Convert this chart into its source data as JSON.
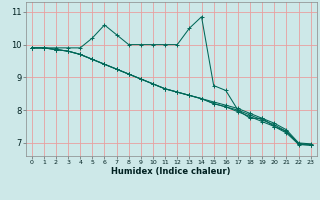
{
  "title": "",
  "xlabel": "Humidex (Indice chaleur)",
  "ylabel": "",
  "background_color": "#cde8e8",
  "grid_color_v": "#e8a0a0",
  "grid_color_h": "#e8a0a0",
  "line_color": "#006858",
  "x_ticks": [
    0,
    1,
    2,
    3,
    4,
    5,
    6,
    7,
    8,
    9,
    10,
    11,
    12,
    13,
    14,
    15,
    16,
    17,
    18,
    19,
    20,
    21,
    22,
    23
  ],
  "y_ticks": [
    7,
    8,
    9,
    10,
    11
  ],
  "ylim": [
    6.6,
    11.3
  ],
  "xlim": [
    -0.5,
    23.5
  ],
  "series": [
    {
      "x": [
        0,
        1,
        2,
        3,
        4,
        5,
        6,
        7,
        8,
        9,
        10,
        11,
        12,
        13,
        14,
        15,
        16,
        17,
        18,
        19,
        20,
        21,
        22,
        23
      ],
      "y": [
        9.9,
        9.9,
        9.9,
        9.9,
        9.9,
        10.2,
        10.6,
        10.3,
        10.0,
        10.0,
        10.0,
        10.0,
        10.0,
        10.5,
        10.85,
        8.75,
        8.6,
        8.0,
        7.75,
        7.75,
        7.5,
        7.35,
        6.95,
        6.93
      ]
    },
    {
      "x": [
        0,
        1,
        2,
        3,
        4,
        5,
        6,
        7,
        8,
        9,
        10,
        11,
        12,
        13,
        14,
        15,
        16,
        17,
        18,
        19,
        20,
        21,
        22,
        23
      ],
      "y": [
        9.9,
        9.9,
        9.85,
        9.8,
        9.7,
        9.55,
        9.4,
        9.25,
        9.1,
        8.95,
        8.8,
        8.65,
        8.55,
        8.45,
        8.35,
        8.25,
        8.15,
        8.05,
        7.9,
        7.75,
        7.6,
        7.4,
        7.0,
        6.97
      ]
    },
    {
      "x": [
        0,
        1,
        2,
        3,
        4,
        5,
        6,
        7,
        8,
        9,
        10,
        11,
        12,
        13,
        14,
        15,
        16,
        17,
        18,
        19,
        20,
        21,
        22,
        23
      ],
      "y": [
        9.9,
        9.9,
        9.85,
        9.8,
        9.7,
        9.55,
        9.4,
        9.25,
        9.1,
        8.95,
        8.8,
        8.65,
        8.55,
        8.45,
        8.35,
        8.2,
        8.1,
        8.0,
        7.85,
        7.7,
        7.55,
        7.35,
        6.98,
        6.95
      ]
    },
    {
      "x": [
        0,
        1,
        2,
        3,
        4,
        5,
        6,
        7,
        8,
        9,
        10,
        11,
        12,
        13,
        14,
        15,
        16,
        17,
        18,
        19,
        20,
        21,
        22,
        23
      ],
      "y": [
        9.9,
        9.9,
        9.85,
        9.8,
        9.7,
        9.55,
        9.4,
        9.25,
        9.1,
        8.95,
        8.8,
        8.65,
        8.55,
        8.45,
        8.35,
        8.2,
        8.1,
        7.95,
        7.8,
        7.65,
        7.5,
        7.3,
        6.96,
        6.93
      ]
    }
  ],
  "xlabel_fontsize": 6,
  "xtick_fontsize": 4.5,
  "ytick_fontsize": 6,
  "linewidth": 0.75,
  "markersize": 2.5
}
